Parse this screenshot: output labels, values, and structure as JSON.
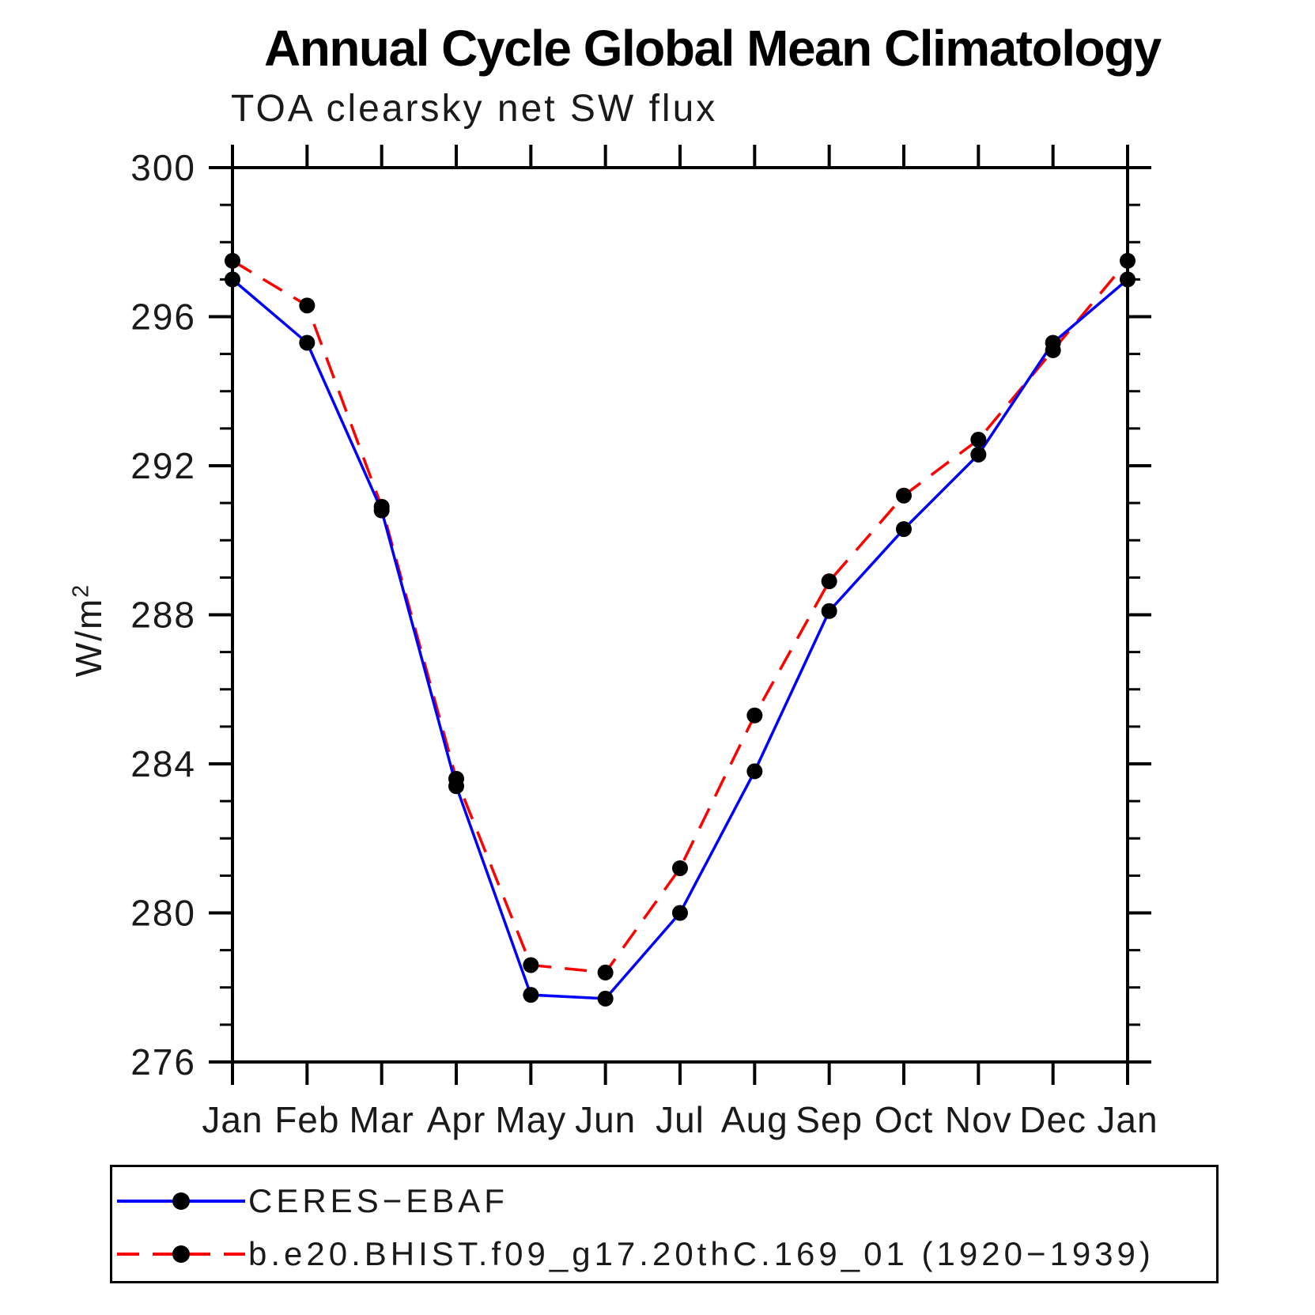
{
  "header": {
    "title": "Annual Cycle Global Mean Climatology",
    "subtitle": "TOA clearsky net SW flux"
  },
  "axes": {
    "ylabel_base": "W/m",
    "ylabel_exp": "2",
    "ytick_labels": [
      "276",
      "280",
      "284",
      "288",
      "292",
      "296",
      "300"
    ],
    "xtick_labels": [
      "Jan",
      "Feb",
      "Mar",
      "Apr",
      "May",
      "Jun",
      "Jul",
      "Aug",
      "Sep",
      "Oct",
      "Nov",
      "Dec",
      "Jan"
    ]
  },
  "chart_data": {
    "type": "line",
    "title": "Annual Cycle Global Mean Climatology",
    "subtitle": "TOA clearsky net SW flux",
    "xlabel": "",
    "ylabel": "W/m2",
    "categories": [
      "Jan",
      "Feb",
      "Mar",
      "Apr",
      "May",
      "Jun",
      "Jul",
      "Aug",
      "Sep",
      "Oct",
      "Nov",
      "Dec",
      "Jan"
    ],
    "series": [
      {
        "name": "CERES−EBAF",
        "color": "#0000ff",
        "line_style": "solid",
        "marker": "circle",
        "marker_color": "#000000",
        "values": [
          297.0,
          295.3,
          290.8,
          283.4,
          277.8,
          277.7,
          280.0,
          283.8,
          288.1,
          290.3,
          292.3,
          295.3,
          297.0
        ]
      },
      {
        "name": "b.e20.BHIST.f09_g17.20thC.169_01 (1920−1939)",
        "color": "#ff0000",
        "line_style": "dashed",
        "marker": "circle",
        "marker_color": "#000000",
        "values": [
          297.5,
          296.3,
          290.9,
          283.6,
          278.6,
          278.4,
          281.2,
          285.3,
          288.9,
          291.2,
          292.7,
          295.1,
          297.5
        ]
      }
    ],
    "ylim": [
      276,
      300
    ],
    "ytick_major_step": 4,
    "ytick_minor_step": 1,
    "grid": false,
    "legend_position": "bottom"
  }
}
